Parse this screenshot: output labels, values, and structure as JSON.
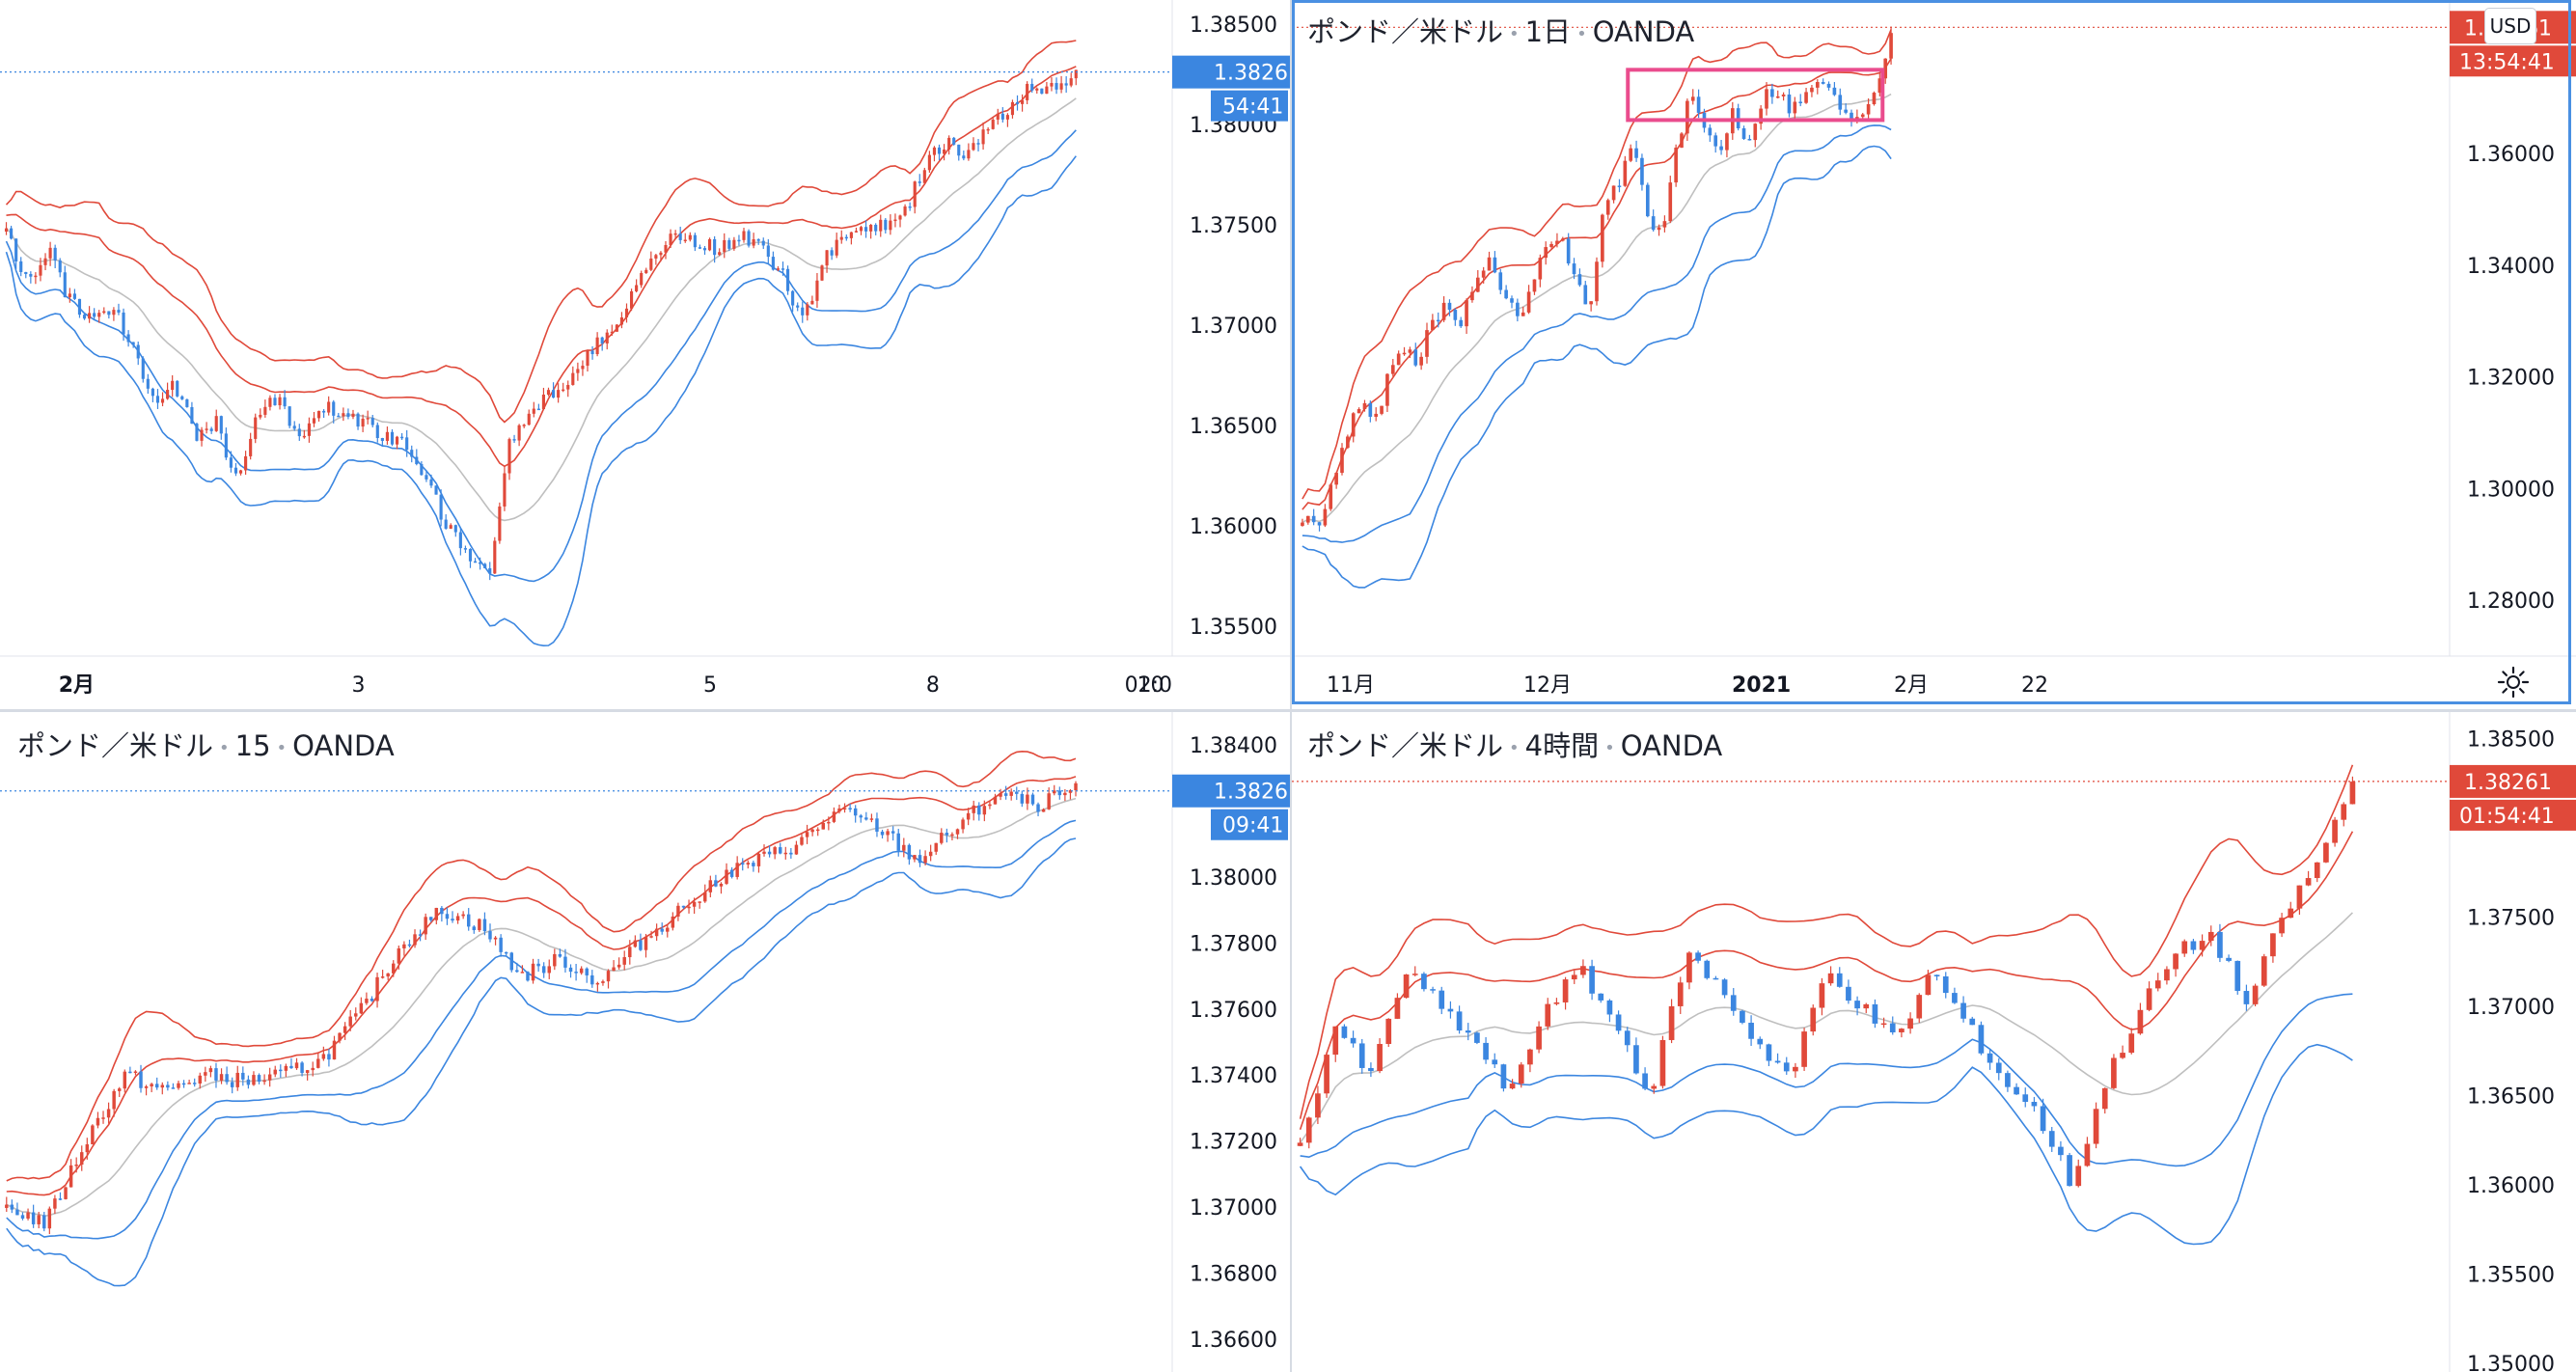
{
  "colors": {
    "up": "#e0493a",
    "down": "#3b86e0",
    "mid": "#bfbfbf",
    "lastRed": "#e0493a",
    "lastBlue": "#3b86e0",
    "highlight": "#ea4c8d"
  },
  "currency_button": "USD",
  "panels": {
    "tl": {
      "title_pair": "",
      "title_tf": "",
      "title_src": "",
      "price_label": "1.38261",
      "countdown": "54:41",
      "y_ticks": [
        "1.38500",
        "1.38000",
        "1.37500",
        "1.37000",
        "1.36500",
        "1.36000",
        "1.35500"
      ],
      "x_ticks": [
        "2月",
        "3",
        "5",
        "8",
        "10",
        "02:0"
      ]
    },
    "tr": {
      "title_pair": "ポンド／米ドル",
      "title_tf": "1日",
      "title_src": "OANDA",
      "price_label": "1.38261",
      "countdown": "13:54:41",
      "y_ticks": [
        "1.36000",
        "1.34000",
        "1.32000",
        "1.30000",
        "1.28000"
      ],
      "x_ticks": [
        "11月",
        "12月",
        "2021",
        "2月",
        "22"
      ]
    },
    "bl": {
      "title_pair": "ポンド／米ドル",
      "title_tf": "15",
      "title_src": "OANDA",
      "price_label": "1.38261",
      "countdown": "09:41",
      "y_ticks": [
        "1.38400",
        "1.38000",
        "1.37800",
        "1.37600",
        "1.37400",
        "1.37200",
        "1.37000",
        "1.36800",
        "1.36600"
      ],
      "x_ticks": []
    },
    "br": {
      "title_pair": "ポンド／米ドル",
      "title_tf": "4時間",
      "title_src": "OANDA",
      "price_label": "1.38261",
      "countdown": "01:54:41",
      "y_ticks": [
        "1.38500",
        "1.37500",
        "1.37000",
        "1.36500",
        "1.36000",
        "1.35500",
        "1.35000"
      ],
      "x_ticks": []
    }
  },
  "chart_data": [
    {
      "type": "candlestick",
      "panel": "tl",
      "symbol": "GBPUSD",
      "last_price": 1.38261,
      "ylim": [
        1.3535,
        1.3862
      ],
      "close_path": [
        1.3745,
        1.3722,
        1.3738,
        1.3712,
        1.3705,
        1.3708,
        1.3692,
        1.3662,
        1.3672,
        1.3645,
        1.3652,
        1.3622,
        1.3658,
        1.3662,
        1.364,
        1.366,
        1.3655,
        1.3652,
        1.3645,
        1.364,
        1.3625,
        1.36,
        1.3585,
        1.3575,
        1.364,
        1.366,
        1.3665,
        1.3675,
        1.369,
        1.37,
        1.372,
        1.3735,
        1.3745,
        1.374,
        1.3738,
        1.3745,
        1.374,
        1.3725,
        1.37,
        1.3735,
        1.3745,
        1.375,
        1.3748,
        1.376,
        1.3785,
        1.379,
        1.3785,
        1.38,
        1.381,
        1.382,
        1.3818,
        1.3826
      ]
    },
    {
      "type": "candlestick",
      "panel": "tr",
      "symbol": "GBPUSD",
      "timeframe": "1D",
      "last_price": 1.38261,
      "ylim": [
        1.27,
        1.3875
      ],
      "close_path": [
        1.295,
        1.292,
        1.3,
        1.31,
        1.315,
        1.312,
        1.32,
        1.325,
        1.322,
        1.33,
        1.333,
        1.33,
        1.338,
        1.34,
        1.335,
        1.33,
        1.338,
        1.342,
        1.345,
        1.338,
        1.33,
        1.35,
        1.355,
        1.362,
        1.35,
        1.345,
        1.36,
        1.37,
        1.365,
        1.36,
        1.368,
        1.362,
        1.37,
        1.372,
        1.368,
        1.37,
        1.374,
        1.37,
        1.366,
        1.368,
        1.372,
        1.3826
      ]
    },
    {
      "type": "candlestick",
      "panel": "bl",
      "symbol": "GBPUSD",
      "timeframe": "15",
      "last_price": 1.38261,
      "ylim": [
        1.365,
        1.385
      ],
      "close_path": [
        1.37,
        1.3695,
        1.372,
        1.374,
        1.3735,
        1.374,
        1.3738,
        1.374,
        1.3745,
        1.376,
        1.378,
        1.379,
        1.3785,
        1.377,
        1.3775,
        1.3768,
        1.378,
        1.379,
        1.38,
        1.3805,
        1.381,
        1.382,
        1.3815,
        1.3805,
        1.3815,
        1.3825,
        1.3822,
        1.3826
      ]
    },
    {
      "type": "candlestick",
      "panel": "br",
      "symbol": "GBPUSD",
      "timeframe": "4H",
      "last_price": 1.38261,
      "ylim": [
        1.3495,
        1.3865
      ],
      "close_path": [
        1.362,
        1.369,
        1.366,
        1.372,
        1.37,
        1.368,
        1.365,
        1.37,
        1.372,
        1.369,
        1.365,
        1.373,
        1.371,
        1.368,
        1.366,
        1.372,
        1.37,
        1.368,
        1.372,
        1.369,
        1.366,
        1.364,
        1.36,
        1.366,
        1.37,
        1.373,
        1.374,
        1.37,
        1.375,
        1.378,
        1.3826
      ]
    }
  ]
}
